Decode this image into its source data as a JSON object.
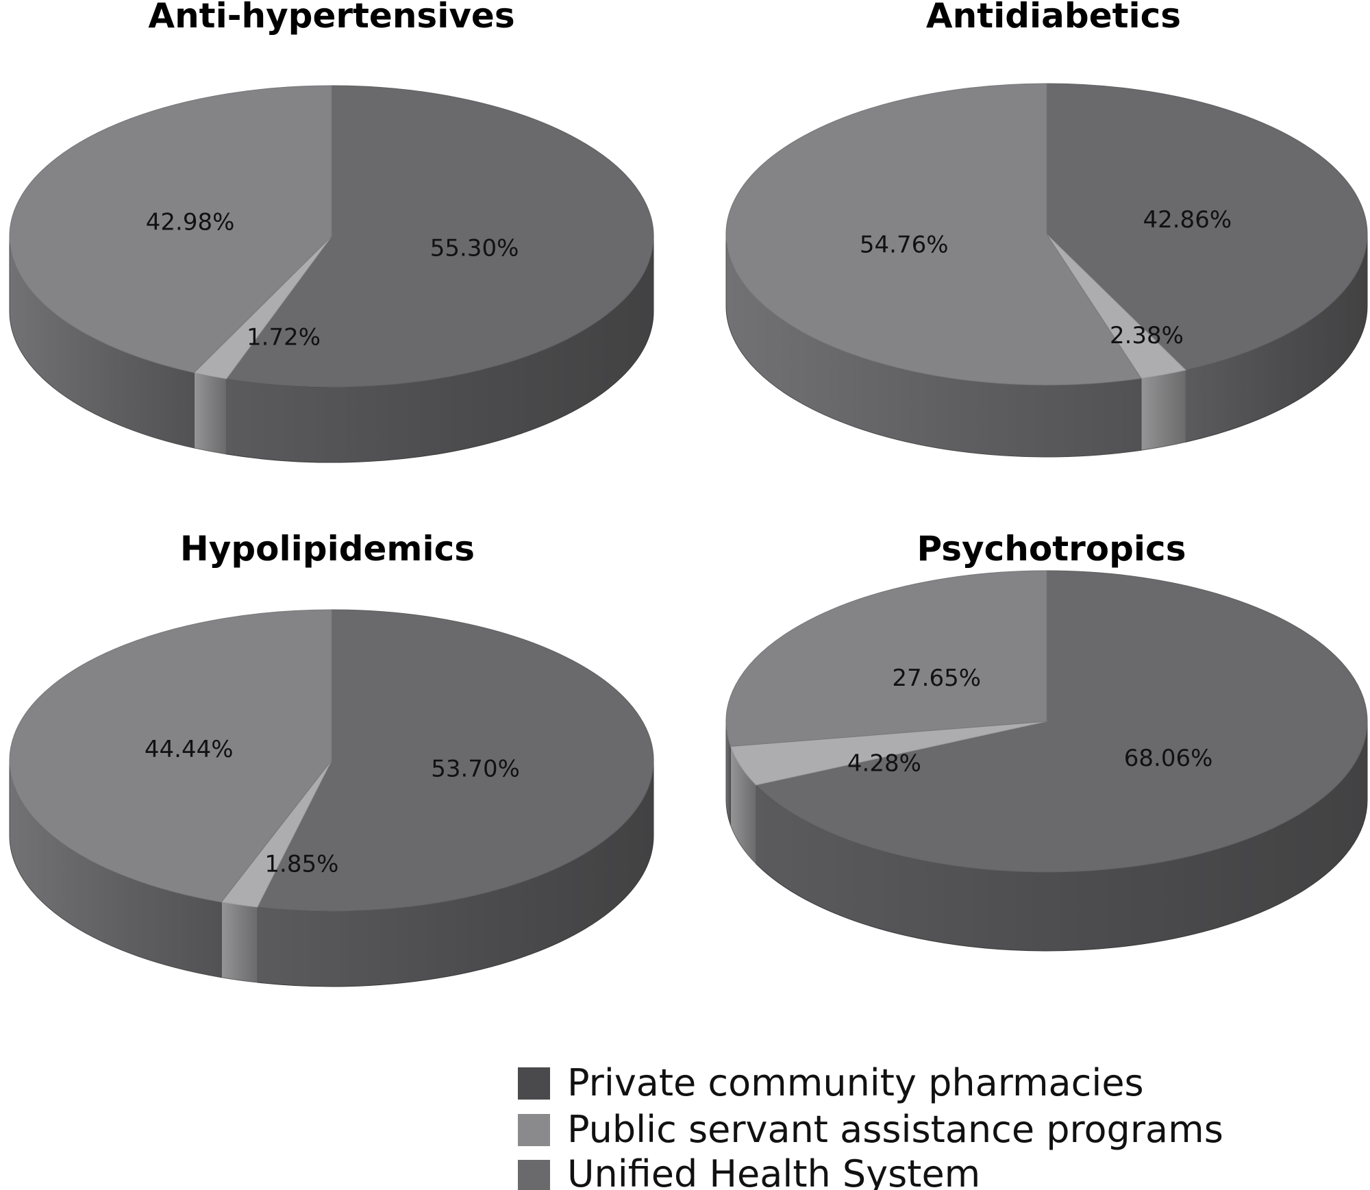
{
  "colors": {
    "private_top": "#6a6a6c",
    "public_top": "#adadaf",
    "unified_top": "#848487",
    "legend_private": "#4a4a4c",
    "legend_public": "#8a8a8c",
    "legend_unified": "#6a6a6c"
  },
  "legend": {
    "private": "Private community pharmacies",
    "public": "Public servant assistance programs",
    "unified": "Unified Health System"
  },
  "chart_data": [
    {
      "type": "pie",
      "title": "Anti-hypertensives",
      "slices": [
        {
          "name": "Private community pharmacies",
          "value": 55.3,
          "label": "55.30%"
        },
        {
          "name": "Public servant assistance programs",
          "value": 1.72,
          "label": "1.72%"
        },
        {
          "name": "Unified Health System",
          "value": 42.98,
          "label": "42.98%"
        }
      ]
    },
    {
      "type": "pie",
      "title": "Antidiabetics",
      "slices": [
        {
          "name": "Private community pharmacies",
          "value": 42.86,
          "label": "42.86%"
        },
        {
          "name": "Public servant assistance programs",
          "value": 2.38,
          "label": "2.38%"
        },
        {
          "name": "Unified Health System",
          "value": 54.76,
          "label": "54.76%"
        }
      ]
    },
    {
      "type": "pie",
      "title": "Hypolipidemics",
      "slices": [
        {
          "name": "Private community pharmacies",
          "value": 53.7,
          "label": "53.70%"
        },
        {
          "name": "Public servant assistance programs",
          "value": 1.85,
          "label": "1.85%"
        },
        {
          "name": "Unified Health System",
          "value": 44.44,
          "label": "44.44%"
        }
      ]
    },
    {
      "type": "pie",
      "title": "Psychotropics",
      "slices": [
        {
          "name": "Private community pharmacies",
          "value": 68.06,
          "label": "68.06%"
        },
        {
          "name": "Public servant assistance programs",
          "value": 4.28,
          "label": "4.28%"
        },
        {
          "name": "Unified Health System",
          "value": 27.65,
          "label": "27.65%"
        }
      ]
    }
  ]
}
